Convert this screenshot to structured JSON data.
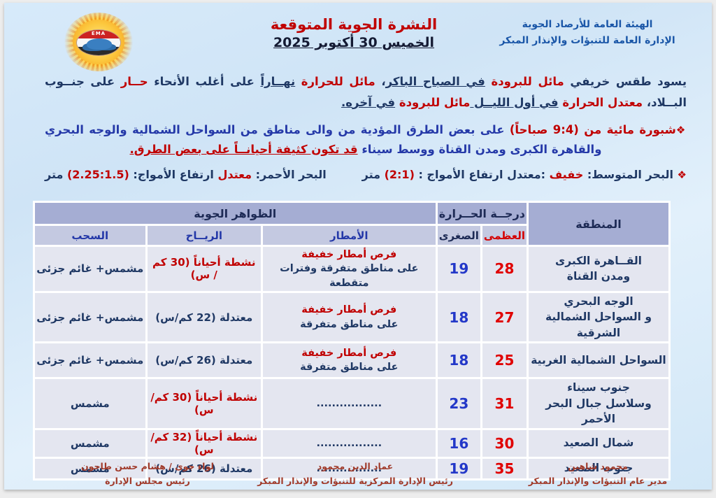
{
  "colors": {
    "accent_red": "#c00000",
    "navy": "#1f3864",
    "blue": "#2539a8",
    "header_fill": "#a5add3",
    "subheader_fill": "#c4c9e1",
    "row_fill": "#e4e6f0",
    "footer_red": "#a03a2a"
  },
  "header": {
    "org_line1": "الهيئة العامة للأرصاد الجوية",
    "org_line2": "الإدارة العامة للتنبؤات والإنذار المبكر",
    "title": "النشرة الجوية المتوقعة",
    "date": "الخميس 30 أكتوبر 2025",
    "logo_text": "EMA"
  },
  "bullet_marker": "❖",
  "forecast_paragraph": [
    {
      "t": "يسود طقس خريفي ",
      "c": "navy"
    },
    {
      "t": "مائل للبرودة ",
      "c": "red"
    },
    {
      "t": "في الصباح الباكر",
      "c": "navy",
      "u": true
    },
    {
      "t": "، ",
      "c": "navy"
    },
    {
      "t": "مائل للحرارة ",
      "c": "red"
    },
    {
      "t": "نهــاراً",
      "c": "navy",
      "u": true
    },
    {
      "t": " على أغلب الأنحاء ",
      "c": "navy"
    },
    {
      "t": "حــار ",
      "c": "red"
    },
    {
      "t": "على جنــوب البــلاد، ",
      "c": "navy"
    },
    {
      "t": "معتدل الحرارة ",
      "c": "red"
    },
    {
      "t": "في أول الليــل ",
      "c": "navy",
      "u": true
    },
    {
      "t": "مائل للبرودة ",
      "c": "red"
    },
    {
      "t": "في آخره.",
      "c": "navy",
      "u": true
    }
  ],
  "fog_paragraph": [
    {
      "t": "شبورة مائية من (9:4 صباحاً) ",
      "c": "red"
    },
    {
      "t": "على بعض الطرق المؤدية من والى مناطق من السواحل الشمالية والوجه البحري والقاهرة الكبرى ومدن القناة ووسط سيناء ",
      "c": "blue"
    },
    {
      "t": "قد تكون كثيفة أحيانــاً على بعض الطرق.",
      "c": "red",
      "u": true
    }
  ],
  "seas": {
    "mediterranean": [
      {
        "t": "البحر المتوسط: ",
        "c": "navy"
      },
      {
        "t": "خفيف",
        "c": "red"
      },
      {
        "t": " :معتدل",
        "c": "navy"
      },
      {
        "t": "   ارتفاع الأمواج : ",
        "c": "navy"
      },
      {
        "t": "(2:1)",
        "c": "red"
      },
      {
        "t": " متر",
        "c": "navy"
      }
    ],
    "red_sea": [
      {
        "t": "البحر الأحمر: ",
        "c": "navy"
      },
      {
        "t": "معتدل",
        "c": "red"
      },
      {
        "t": "    ارتفاع الأمواج: ",
        "c": "navy"
      },
      {
        "t": "(2.25:1.5)",
        "c": "red"
      },
      {
        "t": " متر",
        "c": "navy"
      }
    ]
  },
  "table": {
    "headers": {
      "region": "المنطقة",
      "temperature": "درجــة الحــرارة",
      "max": "العظمى",
      "min": "الصغرى",
      "phenomena": "الظواهر الجوية",
      "rain": "الأمطار",
      "wind": "الريــاح",
      "clouds": "السحب"
    },
    "rows": [
      {
        "region": [
          "القــاهرة الكبرى",
          "ومدن القناة"
        ],
        "max": "28",
        "min": "19",
        "rain": [
          "فرص أمطار خفيفة",
          "على مناطق متفرقة وفترات متقطعة"
        ],
        "rain_style": "red-navy",
        "wind": "نشطة أحياناً (30 كم / س)",
        "wind_style": "red",
        "clouds": "مشمس+ غائم جزئى"
      },
      {
        "region": [
          "الوجه البحري",
          "و السواحل الشمالية الشرقية"
        ],
        "max": "27",
        "min": "18",
        "rain": [
          "فرص أمطار خفيفة",
          "على مناطق متفرقة"
        ],
        "rain_style": "red-navy",
        "wind": "معتدلة (22 كم/س)",
        "wind_style": "navy",
        "clouds": "مشمس+ غائم جزئى"
      },
      {
        "region": [
          "السواحل الشمالية الغربية"
        ],
        "max": "25",
        "min": "18",
        "rain": [
          "فرص أمطار خفيفة",
          "على مناطق متفرقة"
        ],
        "rain_style": "red-navy",
        "wind": "معتدلة (26 كم/س)",
        "wind_style": "navy",
        "clouds": "مشمس+ غائم جزئى"
      },
      {
        "region": [
          "جنوب سيناء",
          "وسلاسل جبال البحر الأحمر"
        ],
        "max": "31",
        "min": "23",
        "rain": [
          "................."
        ],
        "rain_style": "navy",
        "wind": "نشطة أحياناً (30 كم/س)",
        "wind_style": "red",
        "clouds": "مشمس"
      },
      {
        "region": [
          "شمال الصعيد"
        ],
        "max": "30",
        "min": "16",
        "rain": [
          "................."
        ],
        "rain_style": "navy",
        "wind": "نشطة أحياناً (32 كم/س)",
        "wind_style": "red",
        "clouds": "مشمس"
      },
      {
        "region": [
          "جنوب الصعيد"
        ],
        "max": "35",
        "min": "19",
        "rain": [
          "................."
        ],
        "rain_style": "navy",
        "wind": "معتدلة (26 كم/س)",
        "wind_style": "navy",
        "clouds": "مشمس"
      }
    ]
  },
  "footer": {
    "right": {
      "name": "محمود شاهين",
      "title": "مدير عام التنبؤات والإنذار المبكر"
    },
    "center": {
      "name": "عماد الدين محمود",
      "title": "رئيس الإدارة المركزية للتنبؤات والإنذار المبكر"
    },
    "left": {
      "name": "لواء جوى / هشام حسن طاحون",
      "title": "رئيس مجلس الإدارة"
    }
  }
}
